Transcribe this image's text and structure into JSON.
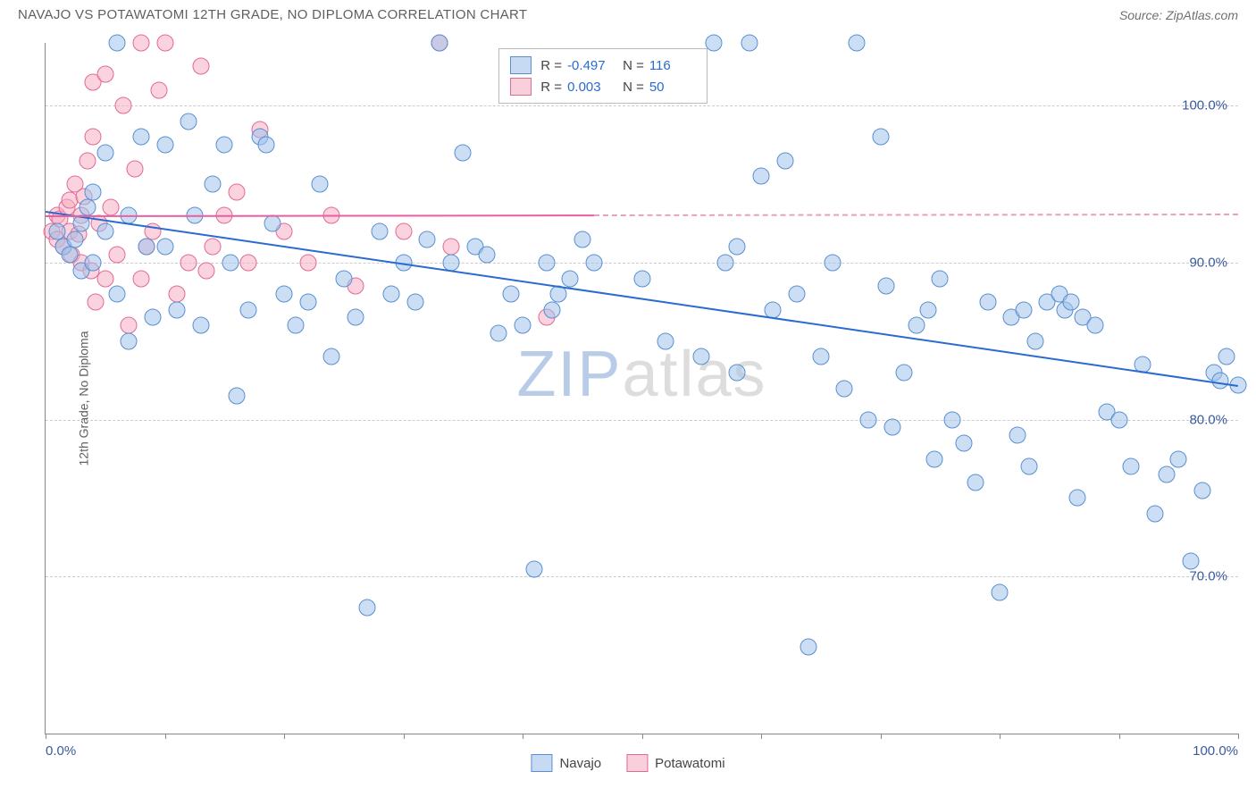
{
  "header": {
    "title": "NAVAJO VS POTAWATOMI 12TH GRADE, NO DIPLOMA CORRELATION CHART",
    "source": "Source: ZipAtlas.com"
  },
  "y_axis": {
    "label": "12th Grade, No Diploma"
  },
  "chart": {
    "type": "scatter",
    "xlim": [
      0,
      100
    ],
    "ylim": [
      60,
      104
    ],
    "y_ticks": [
      70,
      80,
      90,
      100
    ],
    "y_tick_labels": [
      "70.0%",
      "80.0%",
      "90.0%",
      "100.0%"
    ],
    "x_ticks": [
      0,
      10,
      20,
      30,
      40,
      50,
      60,
      70,
      80,
      90,
      100
    ],
    "x_min_label": "0.0%",
    "x_max_label": "100.0%",
    "grid_color": "#cccccc",
    "background_color": "#ffffff",
    "point_radius": 8.5,
    "series": {
      "navajo": {
        "color_fill": "rgba(160,195,235,0.55)",
        "color_stroke": "#5a8fd0",
        "trend_color": "#2a6bd0",
        "R": "-0.497",
        "N": "116",
        "trend": {
          "x1": 0,
          "y1": 93.3,
          "x2": 100,
          "y2": 82.2
        },
        "points": [
          [
            1,
            92
          ],
          [
            1.5,
            91
          ],
          [
            2,
            90.5
          ],
          [
            2.5,
            91.5
          ],
          [
            3,
            92.5
          ],
          [
            3.5,
            93.5
          ],
          [
            4,
            94.5
          ],
          [
            3,
            89.5
          ],
          [
            4,
            90
          ],
          [
            5,
            92
          ],
          [
            5,
            97
          ],
          [
            6,
            88
          ],
          [
            6,
            104
          ],
          [
            7,
            85
          ],
          [
            7,
            93
          ],
          [
            8,
            98
          ],
          [
            8.5,
            91
          ],
          [
            9,
            86.5
          ],
          [
            10,
            97.5
          ],
          [
            10,
            91
          ],
          [
            11,
            87
          ],
          [
            12,
            99
          ],
          [
            12.5,
            93
          ],
          [
            13,
            86
          ],
          [
            14,
            95
          ],
          [
            15,
            97.5
          ],
          [
            15.5,
            90
          ],
          [
            16,
            81.5
          ],
          [
            17,
            87
          ],
          [
            18,
            98
          ],
          [
            18.5,
            97.5
          ],
          [
            19,
            92.5
          ],
          [
            20,
            88
          ],
          [
            21,
            86
          ],
          [
            22,
            87.5
          ],
          [
            23,
            95
          ],
          [
            24,
            84
          ],
          [
            25,
            89
          ],
          [
            26,
            86.5
          ],
          [
            27,
            68
          ],
          [
            28,
            92
          ],
          [
            29,
            88
          ],
          [
            30,
            90
          ],
          [
            31,
            87.5
          ],
          [
            32,
            91.5
          ],
          [
            33,
            104
          ],
          [
            34,
            90
          ],
          [
            35,
            97
          ],
          [
            36,
            91
          ],
          [
            37,
            90.5
          ],
          [
            38,
            85.5
          ],
          [
            39,
            88
          ],
          [
            40,
            86
          ],
          [
            41,
            70.5
          ],
          [
            42,
            90
          ],
          [
            42.5,
            87
          ],
          [
            43,
            88
          ],
          [
            44,
            89
          ],
          [
            45,
            91.5
          ],
          [
            46,
            90
          ],
          [
            50,
            89
          ],
          [
            52,
            85
          ],
          [
            55,
            84
          ],
          [
            56,
            104
          ],
          [
            57,
            90
          ],
          [
            58,
            91
          ],
          [
            58,
            83
          ],
          [
            59,
            104
          ],
          [
            60,
            95.5
          ],
          [
            61,
            87
          ],
          [
            62,
            96.5
          ],
          [
            63,
            88
          ],
          [
            64,
            65.5
          ],
          [
            65,
            84
          ],
          [
            66,
            90
          ],
          [
            67,
            82
          ],
          [
            68,
            104
          ],
          [
            69,
            80
          ],
          [
            70,
            98
          ],
          [
            70.5,
            88.5
          ],
          [
            71,
            79.5
          ],
          [
            72,
            83
          ],
          [
            73,
            86
          ],
          [
            74,
            87
          ],
          [
            74.5,
            77.5
          ],
          [
            75,
            89
          ],
          [
            76,
            80
          ],
          [
            77,
            78.5
          ],
          [
            78,
            76
          ],
          [
            79,
            87.5
          ],
          [
            80,
            69
          ],
          [
            81,
            86.5
          ],
          [
            81.5,
            79
          ],
          [
            82,
            87
          ],
          [
            82.5,
            77
          ],
          [
            83,
            85
          ],
          [
            84,
            87.5
          ],
          [
            85,
            88
          ],
          [
            85.5,
            87
          ],
          [
            86,
            87.5
          ],
          [
            86.5,
            75
          ],
          [
            87,
            86.5
          ],
          [
            88,
            86
          ],
          [
            89,
            80.5
          ],
          [
            90,
            80
          ],
          [
            91,
            77
          ],
          [
            92,
            83.5
          ],
          [
            93,
            74
          ],
          [
            94,
            76.5
          ],
          [
            95,
            77.5
          ],
          [
            96,
            71
          ],
          [
            97,
            75.5
          ],
          [
            98,
            83
          ],
          [
            98.5,
            82.5
          ],
          [
            99,
            84
          ],
          [
            100,
            82.2
          ]
        ]
      },
      "potawatomi": {
        "color_fill": "rgba(245,175,195,0.55)",
        "color_stroke": "#e06a95",
        "trend_color": "#e860a0",
        "R": "0.003",
        "N": "50",
        "trend": {
          "x1": 0,
          "y1": 93.0,
          "x2": 46,
          "y2": 93.05
        },
        "trend_dash_to_x": 100,
        "points": [
          [
            0.5,
            92
          ],
          [
            1,
            93
          ],
          [
            1,
            91.5
          ],
          [
            1.2,
            92.8
          ],
          [
            1.5,
            91
          ],
          [
            1.8,
            93.5
          ],
          [
            2,
            94
          ],
          [
            2,
            92
          ],
          [
            2.2,
            90.5
          ],
          [
            2.5,
            95
          ],
          [
            2.8,
            91.8
          ],
          [
            3,
            90
          ],
          [
            3,
            93
          ],
          [
            3.2,
            94.2
          ],
          [
            3.5,
            96.5
          ],
          [
            3.8,
            89.5
          ],
          [
            4,
            98
          ],
          [
            4,
            101.5
          ],
          [
            4.2,
            87.5
          ],
          [
            4.5,
            92.5
          ],
          [
            5,
            89
          ],
          [
            5,
            102
          ],
          [
            5.5,
            93.5
          ],
          [
            6,
            90.5
          ],
          [
            6.5,
            100
          ],
          [
            7,
            86
          ],
          [
            7.5,
            96
          ],
          [
            8,
            104
          ],
          [
            8,
            89
          ],
          [
            8.5,
            91
          ],
          [
            9,
            92
          ],
          [
            9.5,
            101
          ],
          [
            10,
            104
          ],
          [
            11,
            88
          ],
          [
            12,
            90
          ],
          [
            13,
            102.5
          ],
          [
            13.5,
            89.5
          ],
          [
            14,
            91
          ],
          [
            15,
            93
          ],
          [
            16,
            94.5
          ],
          [
            17,
            90
          ],
          [
            18,
            98.5
          ],
          [
            20,
            92
          ],
          [
            22,
            90
          ],
          [
            24,
            93
          ],
          [
            26,
            88.5
          ],
          [
            30,
            92
          ],
          [
            33,
            104
          ],
          [
            34,
            91
          ],
          [
            42,
            86.5
          ]
        ]
      }
    },
    "watermark": {
      "part1": "ZIP",
      "part2": "atlas"
    }
  },
  "stats_legend": {
    "rows": [
      {
        "series": "navajo",
        "R_label": "R =",
        "R": "-0.497",
        "N_label": "N =",
        "N": "116"
      },
      {
        "series": "potawatomi",
        "R_label": "R =",
        "R": "0.003",
        "N_label": "N =",
        "N": "50"
      }
    ]
  },
  "bottom_legend": {
    "items": [
      {
        "series": "navajo",
        "label": "Navajo"
      },
      {
        "series": "potawatomi",
        "label": "Potawatomi"
      }
    ]
  }
}
